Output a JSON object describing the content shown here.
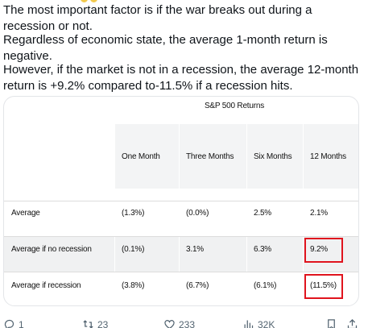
{
  "post": {
    "para1": "The most important factor is if the war breaks out during a recession or not.",
    "para2": "Regardless of economic state, the average 1-month return is negative.",
    "para3": "However, if the market is not in a recession, the average 12-month return is +9.2% compared to-11.5% if a recession hits."
  },
  "table": {
    "title": "S&P 500 Returns",
    "columns": [
      "One Month",
      "Three Months",
      "Six Months",
      "12 Months"
    ],
    "rows": [
      {
        "label": "Average",
        "values": [
          "(1.3%)",
          "(0.0%)",
          "2.5%",
          "2.1%"
        ]
      },
      {
        "label": "Average if no recession",
        "values": [
          "(0.1%)",
          "3.1%",
          "6.3%",
          "9.2%"
        ]
      },
      {
        "label": "Average if recession",
        "values": [
          "(3.8%)",
          "(6.7%)",
          "(6.1%)",
          "(11.5%)"
        ]
      }
    ],
    "highlight_color": "#e0141e"
  },
  "actions": {
    "reply": {
      "icon": "reply-icon",
      "count": "1"
    },
    "repost": {
      "icon": "repost-icon",
      "count": "23"
    },
    "like": {
      "icon": "heart-icon",
      "count": "233"
    },
    "views": {
      "icon": "views-icon",
      "count": "32K"
    },
    "bookmark": {
      "icon": "bookmark-icon"
    },
    "share": {
      "icon": "share-icon"
    }
  }
}
